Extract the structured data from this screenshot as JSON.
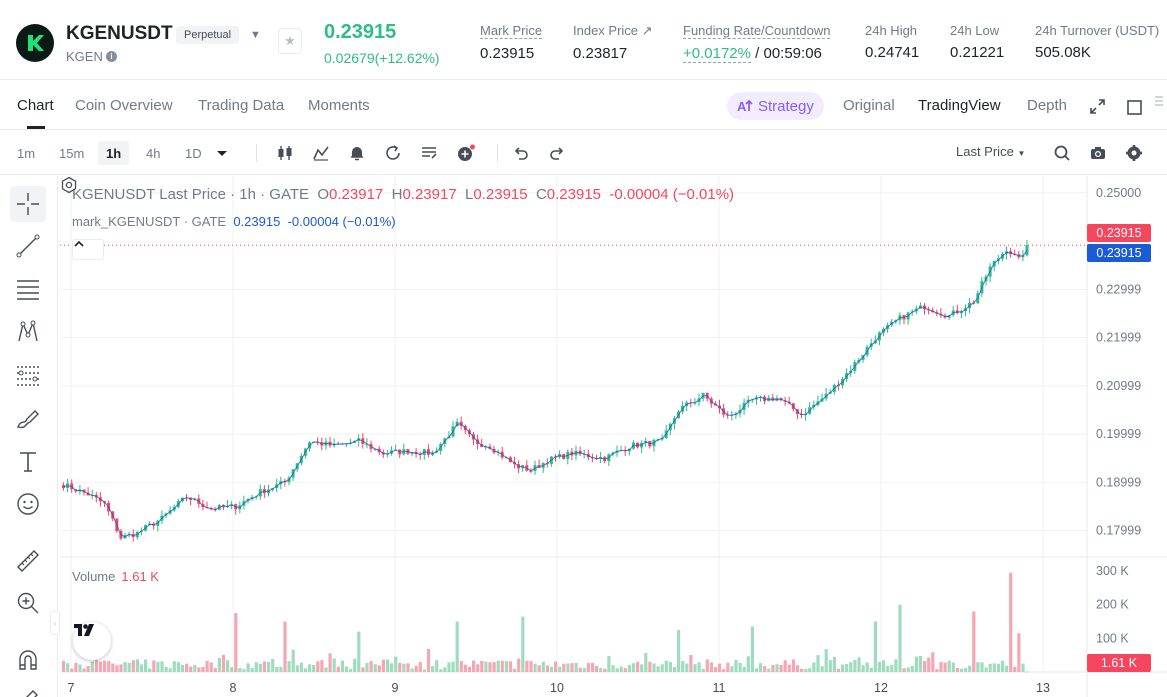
{
  "header": {
    "symbol": "KGENUSDT",
    "contract_type": "Perpetual",
    "base": "KGEN",
    "last_price": "0.23915",
    "change": "0.02679(+12.62%)",
    "stats": [
      {
        "label": "Mark Price",
        "value": "0.23915"
      },
      {
        "label": "Index Price ↗",
        "value": "0.23817"
      },
      {
        "label": "Funding Rate/Countdown",
        "value_green": "+0.0172%",
        "value": " / 00:59:06"
      },
      {
        "label": "24h High",
        "value": "0.24741"
      },
      {
        "label": "24h Low",
        "value": "0.21221"
      },
      {
        "label": "24h Turnover (USDT)",
        "value": "505.08K"
      }
    ]
  },
  "tabs": {
    "items": [
      "Chart",
      "Coin Overview",
      "Trading Data",
      "Moments"
    ],
    "strategy": "Strategy",
    "views": [
      "Original",
      "TradingView",
      "Depth"
    ]
  },
  "toolbar": {
    "timeframes": [
      "1m",
      "15m",
      "1h",
      "4h",
      "1D"
    ],
    "active_timeframe": "1h",
    "price_type": "Last Price"
  },
  "legend": {
    "main": "KGENUSDT Last Price · 1h · GATE",
    "o_label": "O",
    "o": "0.23917",
    "h_label": "H",
    "h": "0.23917",
    "l_label": "L",
    "l": "0.23915",
    "c_label": "C",
    "c": "0.23915",
    "chg": "-0.00004 (−0.01%)",
    "mark_label": "mark_KGENUSDT · GATE",
    "mark_value": "0.23915",
    "mark_chg": "-0.00004 (−0.01%)",
    "volume_label": "Volume",
    "volume_value": "1.61 K"
  },
  "tags": {
    "last": "0.23915",
    "mark": "0.23915",
    "volume": "1.61 K"
  },
  "colors": {
    "up": "#2ebd85",
    "down": "#f6465d",
    "mark": "#1a5bd6",
    "accent": "#8b5cf6"
  },
  "chart_data": {
    "type": "candlestick",
    "title": "KGENUSDT Last Price · 1h · GATE",
    "price_axis_ticks": [
      0.25,
      0.22999,
      0.21999,
      0.20999,
      0.19999,
      0.18999,
      0.17999
    ],
    "price_axis_labels": [
      "0.25000",
      "0.22999",
      "0.21999",
      "0.20999",
      "0.19999",
      "0.18999",
      "0.17999"
    ],
    "ylim": [
      0.1745,
      0.2535
    ],
    "volume_axis_labels": [
      "300 K",
      "200 K",
      "100 K"
    ],
    "volume_ylim": [
      0,
      330
    ],
    "x_labels": [
      "7",
      "8",
      "9",
      "10",
      "11",
      "12",
      "13"
    ],
    "last_price": 0.23915,
    "anchors": [
      [
        0,
        0.1895
      ],
      [
        6,
        0.1875
      ],
      [
        10,
        0.1855
      ],
      [
        14,
        0.1785
      ],
      [
        18,
        0.1795
      ],
      [
        24,
        0.1825
      ],
      [
        30,
        0.187
      ],
      [
        36,
        0.1845
      ],
      [
        42,
        0.185
      ],
      [
        48,
        0.188
      ],
      [
        54,
        0.19
      ],
      [
        60,
        0.1985
      ],
      [
        66,
        0.1975
      ],
      [
        72,
        0.1985
      ],
      [
        78,
        0.196
      ],
      [
        84,
        0.1965
      ],
      [
        90,
        0.196
      ],
      [
        96,
        0.202
      ],
      [
        100,
        0.1985
      ],
      [
        104,
        0.1975
      ],
      [
        110,
        0.1935
      ],
      [
        114,
        0.1925
      ],
      [
        118,
        0.1945
      ],
      [
        124,
        0.196
      ],
      [
        132,
        0.195
      ],
      [
        138,
        0.1975
      ],
      [
        146,
        0.1985
      ],
      [
        150,
        0.205
      ],
      [
        156,
        0.208
      ],
      [
        162,
        0.2035
      ],
      [
        168,
        0.207
      ],
      [
        174,
        0.2075
      ],
      [
        180,
        0.204
      ],
      [
        186,
        0.208
      ],
      [
        192,
        0.2135
      ],
      [
        198,
        0.22
      ],
      [
        204,
        0.224
      ],
      [
        210,
        0.2265
      ],
      [
        216,
        0.2245
      ],
      [
        222,
        0.2275
      ],
      [
        226,
        0.2345
      ],
      [
        230,
        0.2385
      ],
      [
        233,
        0.236
      ],
      [
        235,
        0.2391
      ]
    ],
    "volume_spikes": [
      [
        42,
        175
      ],
      [
        54,
        150
      ],
      [
        72,
        120
      ],
      [
        96,
        150
      ],
      [
        112,
        165
      ],
      [
        150,
        125
      ],
      [
        168,
        135
      ],
      [
        198,
        150
      ],
      [
        204,
        200
      ],
      [
        222,
        180
      ],
      [
        231,
        295
      ],
      [
        233,
        115
      ]
    ]
  }
}
